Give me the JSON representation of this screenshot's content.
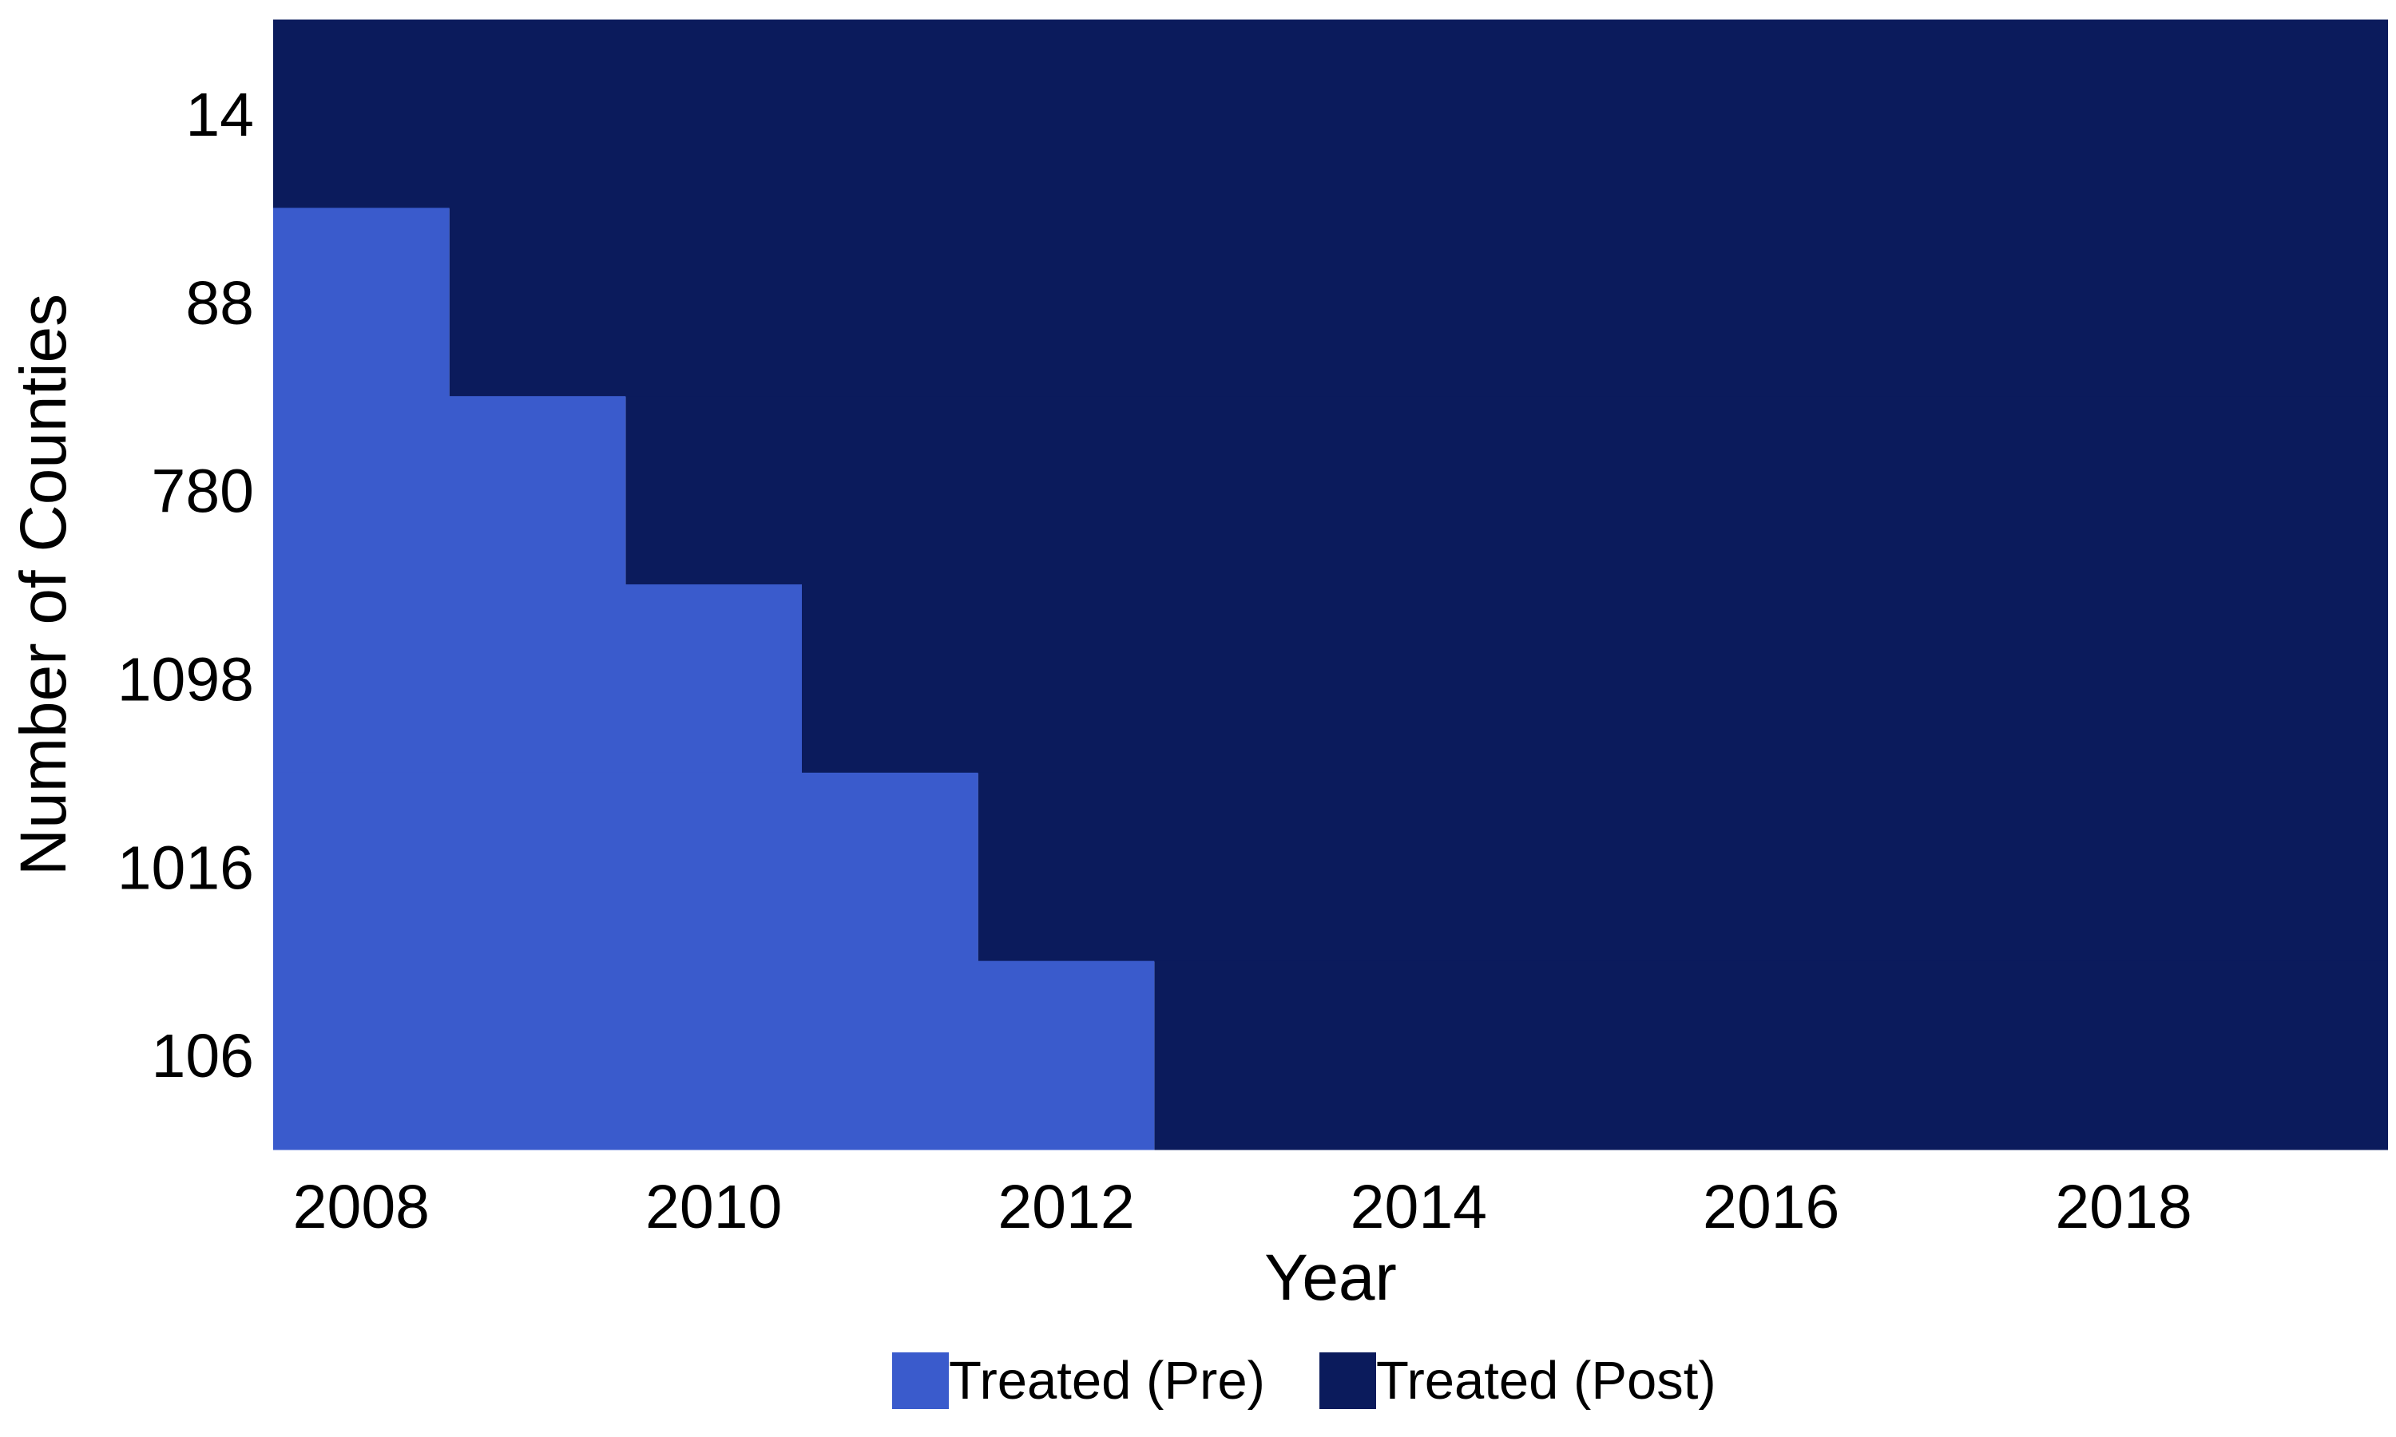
{
  "chart_data": {
    "type": "heatmap",
    "title": "",
    "xlabel": "Year",
    "ylabel": "Number of Counties",
    "x_range": [
      2007.5,
      2019.5
    ],
    "x_ticks": [
      2008,
      2010,
      2012,
      2014,
      2016,
      2018
    ],
    "x_tick_labels": [
      "2008",
      "2010",
      "2012",
      "2014",
      "2016",
      "2018"
    ],
    "y_categories": [
      "14",
      "88",
      "780",
      "1098",
      "1016",
      "106"
    ],
    "cohorts": [
      {
        "counties": "14",
        "pre_years": [],
        "post_years": [
          2008,
          2019
        ]
      },
      {
        "counties": "88",
        "pre_years": [
          2008,
          2008
        ],
        "post_years": [
          2009,
          2019
        ]
      },
      {
        "counties": "780",
        "pre_years": [
          2008,
          2009
        ],
        "post_years": [
          2010,
          2019
        ]
      },
      {
        "counties": "1098",
        "pre_years": [
          2008,
          2010
        ],
        "post_years": [
          2011,
          2019
        ]
      },
      {
        "counties": "1016",
        "pre_years": [
          2008,
          2011
        ],
        "post_years": [
          2012,
          2019
        ]
      },
      {
        "counties": "106",
        "pre_years": [
          2008,
          2012
        ],
        "post_years": [
          2013,
          2019
        ]
      }
    ],
    "legend": {
      "position": "bottom",
      "items": [
        {
          "key": "pre",
          "label": "Treated (Pre)",
          "color": "#3a5bcc"
        },
        {
          "key": "post",
          "label": "Treated (Post)",
          "color": "#0b1b5c"
        }
      ]
    },
    "grid": false
  }
}
